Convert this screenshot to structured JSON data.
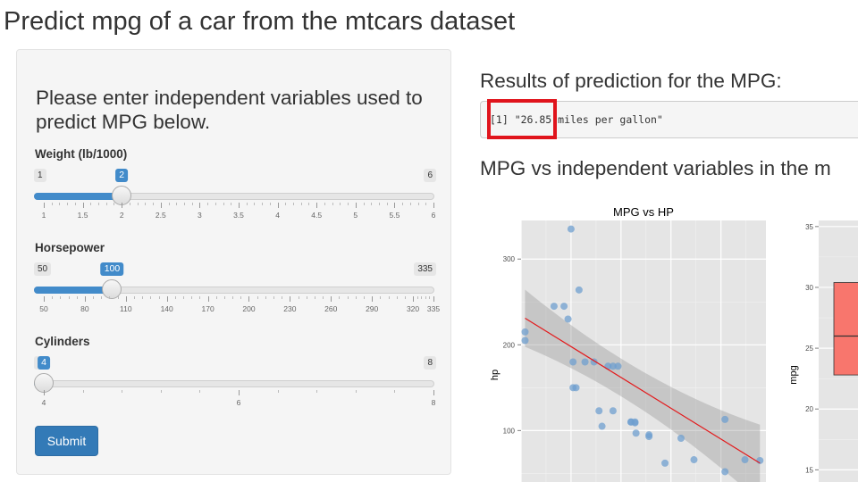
{
  "page_title": "Predict mpg of a car from the mtcars dataset",
  "sidebar": {
    "heading": "Please enter independent variables used to predict MPG below.",
    "sliders": [
      {
        "label": "Weight (lb/1000)",
        "min": 1,
        "max": 6,
        "value": 2,
        "min_label": "1",
        "max_label": "6",
        "value_label": "2",
        "ticks": [
          "1",
          "1.5",
          "2",
          "2.5",
          "3",
          "3.5",
          "4",
          "4.5",
          "5",
          "5.5",
          "6"
        ]
      },
      {
        "label": "Horsepower",
        "min": 50,
        "max": 335,
        "value": 100,
        "min_label": "50",
        "max_label": "335",
        "value_label": "100",
        "ticks": [
          "50",
          "80",
          "110",
          "140",
          "170",
          "200",
          "230",
          "260",
          "290",
          "320",
          "335"
        ]
      },
      {
        "label": "Cylinders",
        "min": 4,
        "max": 8,
        "value": 4,
        "min_label": "4",
        "max_label": "8",
        "value_label": "4",
        "ticks": [
          "4",
          "6",
          "8"
        ]
      }
    ],
    "submit_label": "Submit"
  },
  "main": {
    "results_title": "Results of prediction for the MPG:",
    "result_text": "[1] \"26.85 miles per gallon\"",
    "plots_title": "MPG vs independent variables in the m"
  },
  "colors": {
    "primary": "#337ab7",
    "slider_bar": "#428bca",
    "highlight": "#e0141c",
    "plot_panel": "#e5e5e5",
    "point": "#6f9fcf",
    "fit_line": "#e31a1c",
    "box_fill": "#f8766d"
  },
  "chart_data": [
    {
      "type": "scatter",
      "title": "MPG vs HP",
      "xlabel": "",
      "ylabel": "hp",
      "ylim": [
        40,
        345
      ],
      "xlim": [
        10,
        34.5
      ],
      "y_ticks": [
        100,
        200,
        300
      ],
      "smooth": true,
      "fit_line": {
        "x": [
          10.4,
          33.9
        ],
        "y": [
          231,
          62
        ]
      },
      "points": [
        {
          "x": 21.0,
          "y": 110
        },
        {
          "x": 21.0,
          "y": 110
        },
        {
          "x": 22.8,
          "y": 93
        },
        {
          "x": 21.4,
          "y": 110
        },
        {
          "x": 18.7,
          "y": 175
        },
        {
          "x": 18.1,
          "y": 105
        },
        {
          "x": 14.3,
          "y": 245
        },
        {
          "x": 24.4,
          "y": 62
        },
        {
          "x": 22.8,
          "y": 95
        },
        {
          "x": 19.2,
          "y": 123
        },
        {
          "x": 17.8,
          "y": 123
        },
        {
          "x": 16.4,
          "y": 180
        },
        {
          "x": 17.3,
          "y": 180
        },
        {
          "x": 15.2,
          "y": 180
        },
        {
          "x": 10.4,
          "y": 205
        },
        {
          "x": 10.4,
          "y": 215
        },
        {
          "x": 14.7,
          "y": 230
        },
        {
          "x": 32.4,
          "y": 66
        },
        {
          "x": 30.4,
          "y": 52
        },
        {
          "x": 33.9,
          "y": 65
        },
        {
          "x": 21.5,
          "y": 97
        },
        {
          "x": 15.5,
          "y": 150
        },
        {
          "x": 15.2,
          "y": 150
        },
        {
          "x": 13.3,
          "y": 245
        },
        {
          "x": 19.2,
          "y": 175
        },
        {
          "x": 27.3,
          "y": 66
        },
        {
          "x": 26.0,
          "y": 91
        },
        {
          "x": 30.4,
          "y": 113
        },
        {
          "x": 15.8,
          "y": 264
        },
        {
          "x": 19.7,
          "y": 175
        },
        {
          "x": 15.0,
          "y": 335
        },
        {
          "x": 21.4,
          "y": 109
        }
      ]
    },
    {
      "type": "box",
      "xlabel": "",
      "ylabel": "mpg",
      "ylim": [
        14,
        35.5
      ],
      "y_ticks": [
        15,
        20,
        25,
        30,
        35
      ],
      "boxes": [
        {
          "q1": 22.8,
          "median": 26.0,
          "q3": 30.4
        }
      ]
    }
  ]
}
